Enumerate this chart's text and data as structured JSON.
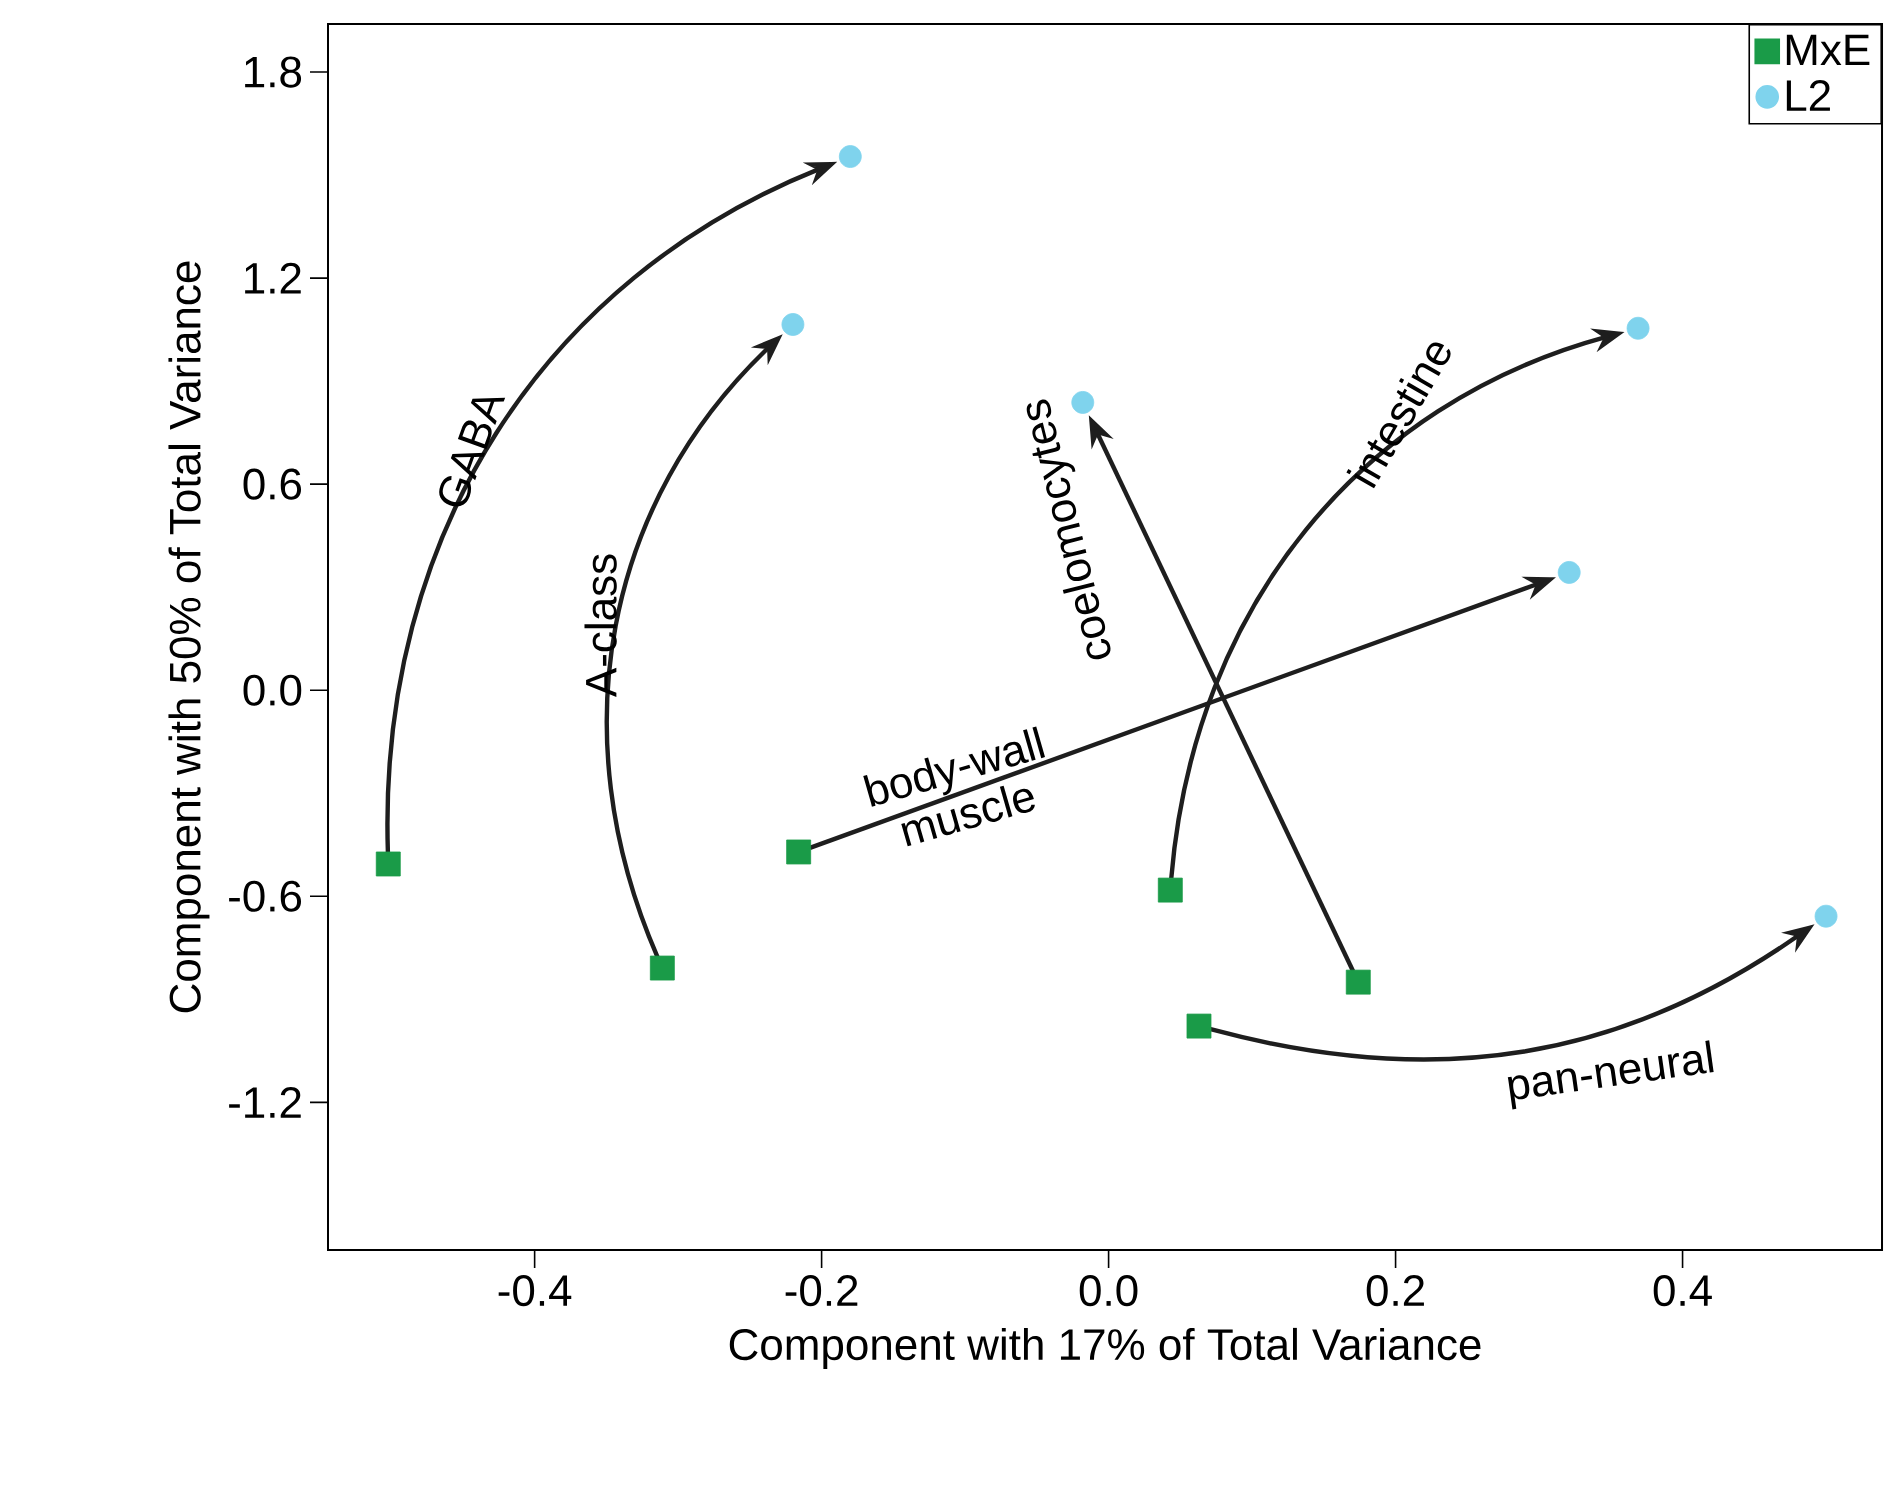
{
  "chart_data": {
    "type": "scatter",
    "xlabel": "Component with 17% of Total Variance",
    "ylabel": "Component with 50% of Total Variance",
    "xlim": [
      -0.544,
      0.539
    ],
    "ylim": [
      -1.63,
      1.94
    ],
    "xticks": [
      -0.4,
      -0.2,
      {
        "value": 0,
        "label": "0.0"
      },
      0.2,
      0.4
    ],
    "yticks": [
      -1.2,
      -0.6,
      {
        "value": 0,
        "label": "0.0"
      },
      0.6,
      1.2,
      1.8
    ],
    "grid": false,
    "legend": "top right",
    "series": [
      {
        "name": "MxE",
        "color": "#1a9b48",
        "marker": "square",
        "x": [
          -0.502,
          -0.311,
          -0.216,
          0.043,
          0.174,
          0.063
        ],
        "values": [
          -0.506,
          -0.809,
          -0.471,
          -0.582,
          -0.85,
          -0.978
        ]
      },
      {
        "name": "L2",
        "color": "#7fd3ed",
        "marker": "circle",
        "x": [
          -0.18,
          -0.22,
          0.321,
          0.369,
          -0.018,
          0.5
        ],
        "values": [
          1.554,
          1.065,
          0.343,
          1.054,
          0.838,
          -0.658
        ]
      }
    ],
    "annotations": [
      "GABA",
      "A-class",
      "body-wall muscle",
      "intestine",
      "coelomocytes",
      "pan-neural"
    ]
  }
}
